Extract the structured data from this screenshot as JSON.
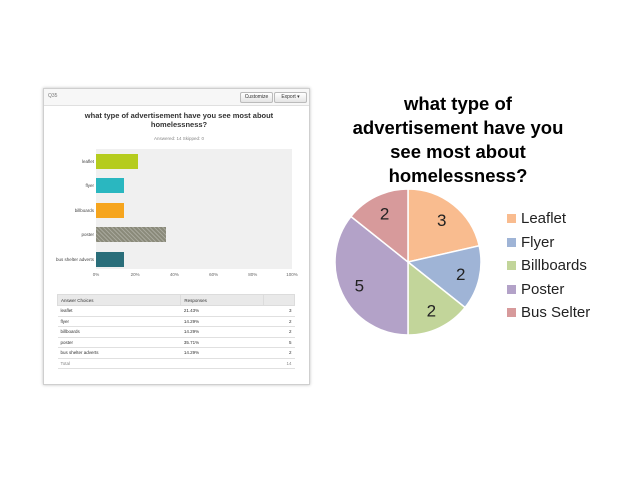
{
  "survey_panel": {
    "question_number": "Q35",
    "customize_label": "Customize",
    "export_label": "Export ▾",
    "title": "what type of advertisement have you see most about homelessness?",
    "answered_skipped": "Answered: 14    Skipped: 0",
    "x_ticks": [
      "0%",
      "20%",
      "40%",
      "60%",
      "80%",
      "100%"
    ],
    "table": {
      "headers": [
        "Answer Choices",
        "Responses",
        ""
      ],
      "rows": [
        {
          "choice": "leaflet",
          "pct": "21.43%",
          "count": "3"
        },
        {
          "choice": "flyer",
          "pct": "14.29%",
          "count": "2"
        },
        {
          "choice": "billboards",
          "pct": "14.29%",
          "count": "2"
        },
        {
          "choice": "poster",
          "pct": "35.71%",
          "count": "5"
        },
        {
          "choice": "bus shelter adverts",
          "pct": "14.29%",
          "count": "2"
        }
      ],
      "total_label": "Total",
      "total_value": "14"
    }
  },
  "chart_data": [
    {
      "type": "bar",
      "orientation": "horizontal",
      "categories": [
        "leaflet",
        "flyer",
        "billboards",
        "poster",
        "bus shelter adverts"
      ],
      "values": [
        21.43,
        14.29,
        14.29,
        35.71,
        14.29
      ],
      "colors": [
        "#b5cc1e",
        "#2ab7c0",
        "#f6a51e",
        "#8a8a7a",
        "#2a6e7a"
      ],
      "xlim": [
        0,
        100
      ],
      "grid": false
    },
    {
      "type": "pie",
      "title": "what type of advertisement have you see most about homelessness?",
      "categories": [
        "Leaflet",
        "Flyer",
        "Billboards",
        "Poster",
        "Bus Selter"
      ],
      "values": [
        3,
        2,
        2,
        5,
        2
      ],
      "data_labels": [
        "3",
        "2",
        "2",
        "5",
        "2"
      ],
      "colors": [
        "#f9bc8f",
        "#9fb4d6",
        "#c2d59a",
        "#b3a2c8",
        "#d79a9b"
      ],
      "legend": "right"
    }
  ]
}
